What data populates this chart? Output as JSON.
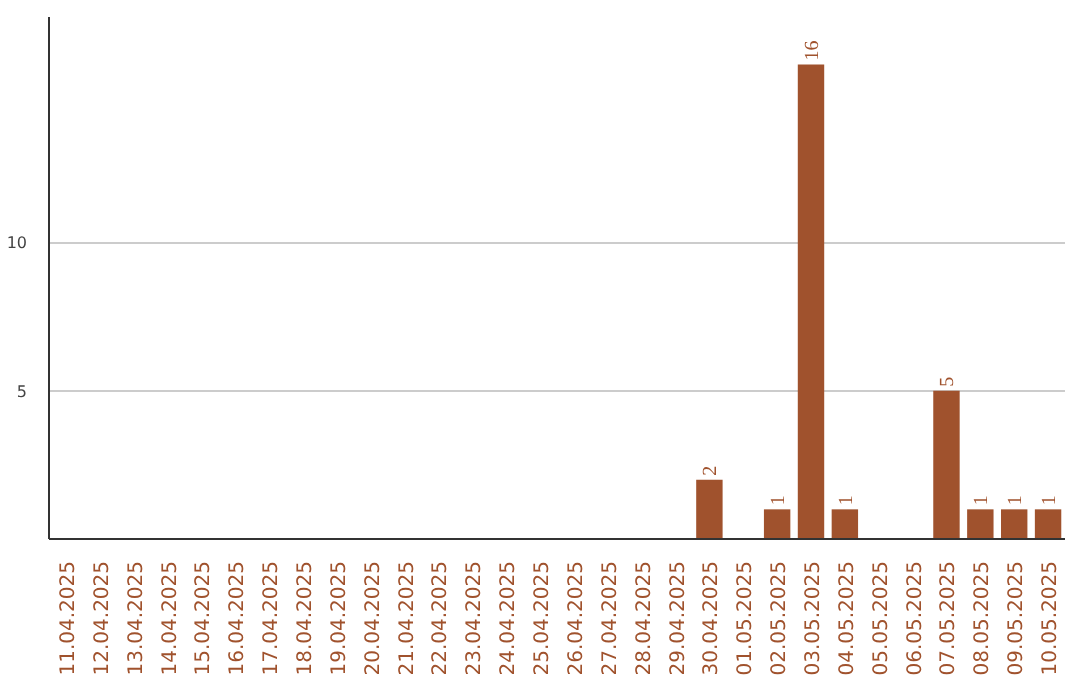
{
  "chart_data": {
    "type": "bar",
    "categories": [
      "11.04.2025",
      "12.04.2025",
      "13.04.2025",
      "14.04.2025",
      "15.04.2025",
      "16.04.2025",
      "17.04.2025",
      "18.04.2025",
      "19.04.2025",
      "20.04.2025",
      "21.04.2025",
      "22.04.2025",
      "23.04.2025",
      "24.04.2025",
      "25.04.2025",
      "26.04.2025",
      "27.04.2025",
      "28.04.2025",
      "29.04.2025",
      "30.04.2025",
      "01.05.2025",
      "02.05.2025",
      "03.05.2025",
      "04.05.2025",
      "05.05.2025",
      "06.05.2025",
      "07.05.2025",
      "08.05.2025",
      "09.05.2025",
      "10.05.2025"
    ],
    "values": [
      0,
      0,
      0,
      0,
      0,
      0,
      0,
      0,
      0,
      0,
      0,
      0,
      0,
      0,
      0,
      0,
      0,
      0,
      0,
      2,
      0,
      1,
      16,
      1,
      0,
      0,
      5,
      1,
      1,
      1
    ],
    "value_labels": [
      null,
      null,
      null,
      null,
      null,
      null,
      null,
      null,
      null,
      null,
      null,
      null,
      null,
      null,
      null,
      null,
      null,
      null,
      null,
      "2",
      null,
      "1",
      "16",
      "1",
      null,
      null,
      "5",
      "1",
      "1",
      "1"
    ],
    "color": "#a0522d",
    "ylim": [
      0,
      17.6
    ],
    "yticks": [
      5,
      10
    ],
    "grid": "y"
  }
}
